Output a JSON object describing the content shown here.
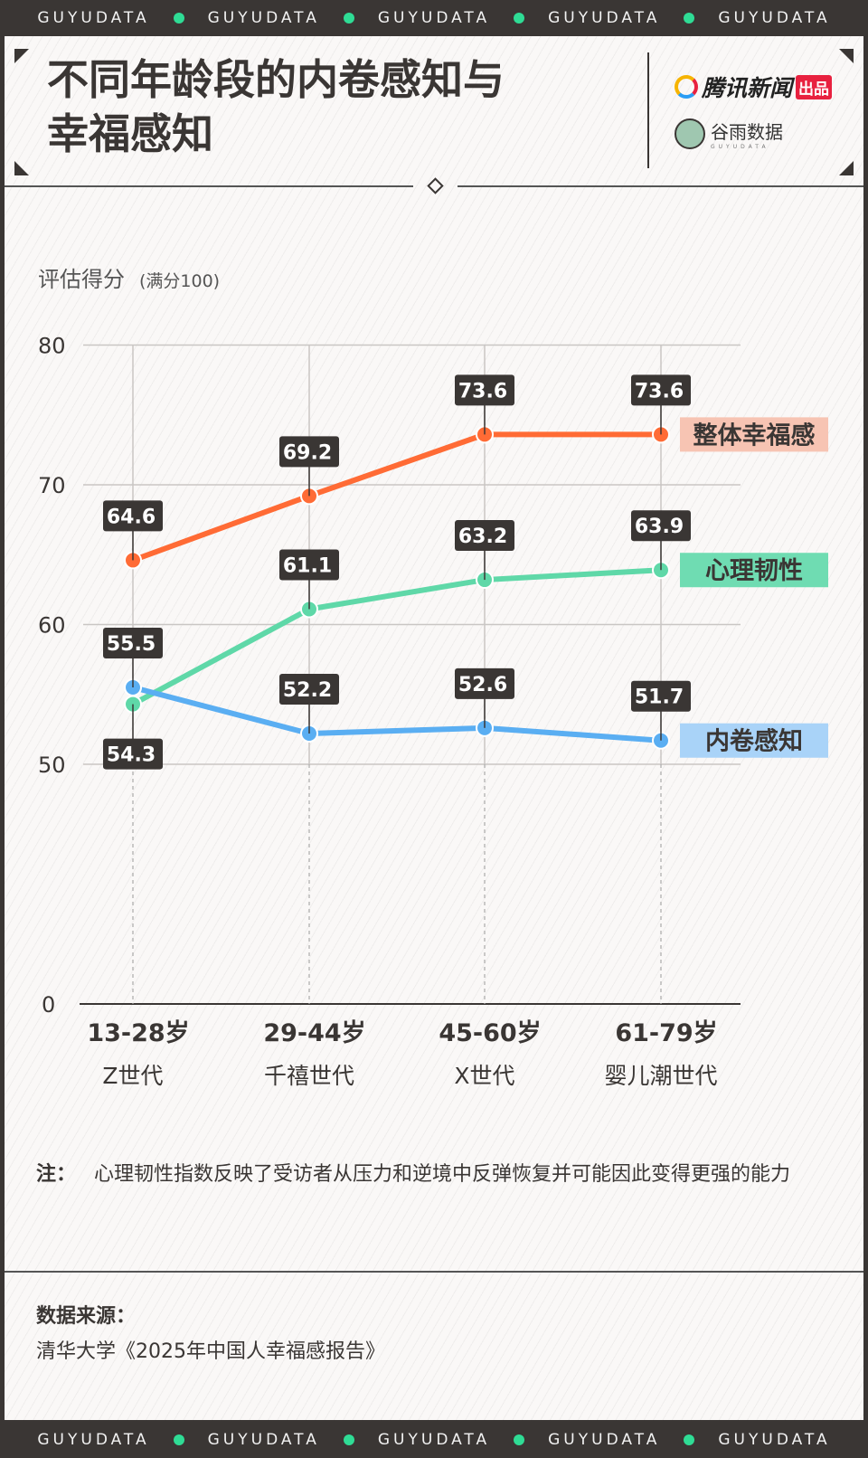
{
  "brand_strip": [
    "GUYUDATA",
    "GUYUDATA",
    "GUYUDATA",
    "GUYUDATA",
    "GUYUDATA"
  ],
  "header": {
    "title_line1": "不同年龄段的内卷感知与",
    "title_line2": "幸福感知",
    "logo_tencent": "腾讯新闻",
    "logo_tencent_badge": "出品",
    "logo_guyu": "谷雨数据",
    "logo_guyu_sub": "GUYUDATA"
  },
  "chart_data": {
    "type": "line",
    "ylabel": "评估得分",
    "ylabel_note": "(满分100)",
    "yticks": [
      80,
      70,
      60,
      50,
      0
    ],
    "ylim": [
      50,
      80
    ],
    "axis_break": "50 to 0",
    "categories": [
      "13-28岁",
      "29-44岁",
      "45-60岁",
      "61-79岁"
    ],
    "category_sub": [
      "Z世代",
      "千禧世代",
      "X世代",
      "婴儿潮世代"
    ],
    "series": [
      {
        "name": "整体幸福感",
        "color": "#ff6b35",
        "label_bg": "#f7c4b3",
        "values": [
          64.6,
          69.2,
          73.6,
          73.6
        ]
      },
      {
        "name": "心理韧性",
        "color": "#5fd8a8",
        "label_bg": "#6fdcb2",
        "values": [
          54.3,
          61.1,
          63.2,
          63.9
        ]
      },
      {
        "name": "内卷感知",
        "color": "#5aaef2",
        "label_bg": "#a9d3f8",
        "values": [
          55.5,
          52.2,
          52.6,
          51.7
        ]
      }
    ],
    "grid": true,
    "legend": "right, at line ends"
  },
  "note": {
    "label": "注：",
    "text": "心理韧性指数反映了受访者从压力和逆境中反弹恢复并可能因此变得更强的能力"
  },
  "source": {
    "label": "数据来源：",
    "text": "清华大学《2025年中国人幸福感报告》"
  }
}
